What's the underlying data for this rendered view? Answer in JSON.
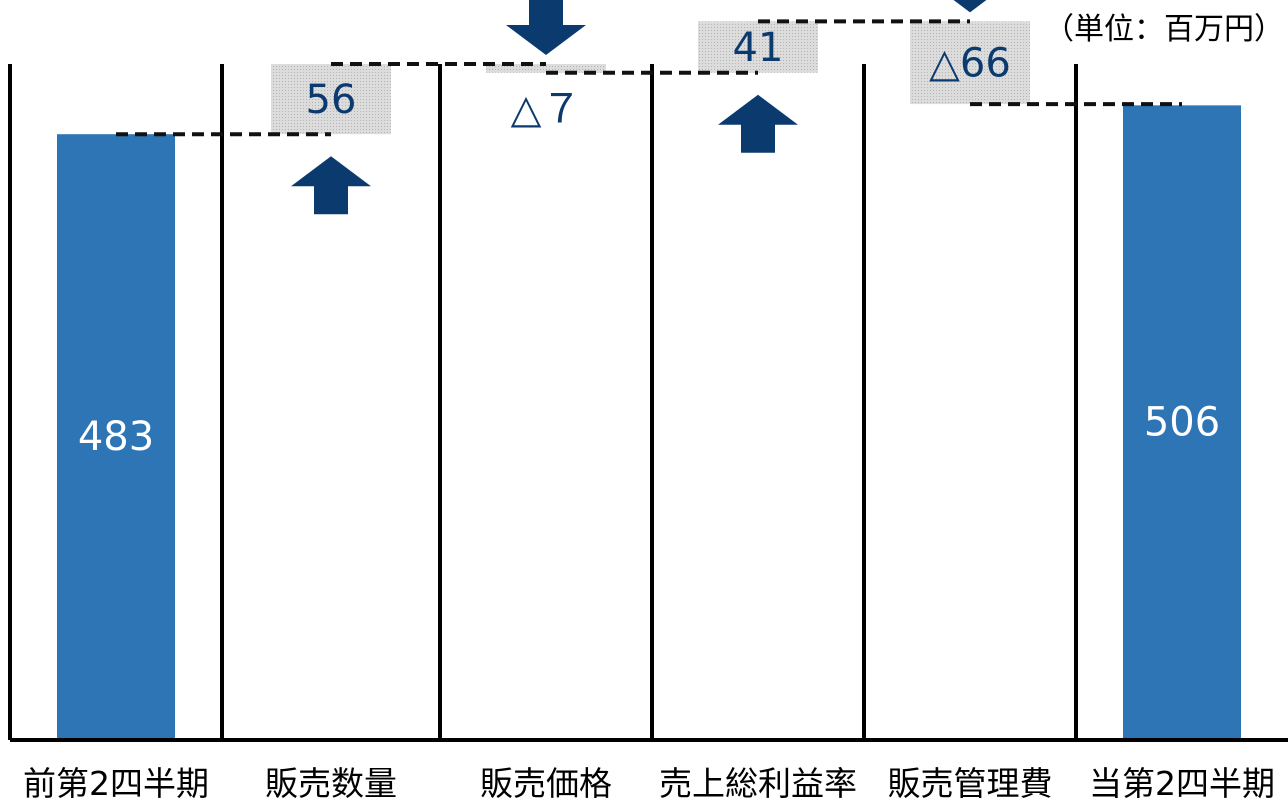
{
  "unit_label": "（単位：百万円）",
  "chart_data": {
    "type": "waterfall",
    "categories": [
      "前第2四半期",
      "販売数量",
      "販売価格",
      "売上総利益率",
      "販売管理費",
      "当第2四半期"
    ],
    "steps": [
      {
        "category": "前第2四半期",
        "kind": "total",
        "value": 483,
        "label": "483"
      },
      {
        "category": "販売数量",
        "kind": "delta",
        "value": 56,
        "label": "56",
        "direction": "up"
      },
      {
        "category": "販売価格",
        "kind": "delta",
        "value": -7,
        "label": "△７",
        "direction": "down"
      },
      {
        "category": "売上総利益率",
        "kind": "delta",
        "value": 41,
        "label": "41",
        "direction": "up"
      },
      {
        "category": "販売管理費",
        "kind": "delta",
        "value": -66,
        "label": "△66",
        "direction": "down"
      },
      {
        "category": "当第2四半期",
        "kind": "total",
        "value": 506,
        "label": "506"
      }
    ],
    "ylim": [
      0,
      590
    ],
    "colors": {
      "total_bar": "#2e75b6",
      "delta_box": "#d4d4d4",
      "arrow": "#0b3a6e",
      "label_total": "#ffffff",
      "label_delta": "#0b3a6e"
    }
  }
}
